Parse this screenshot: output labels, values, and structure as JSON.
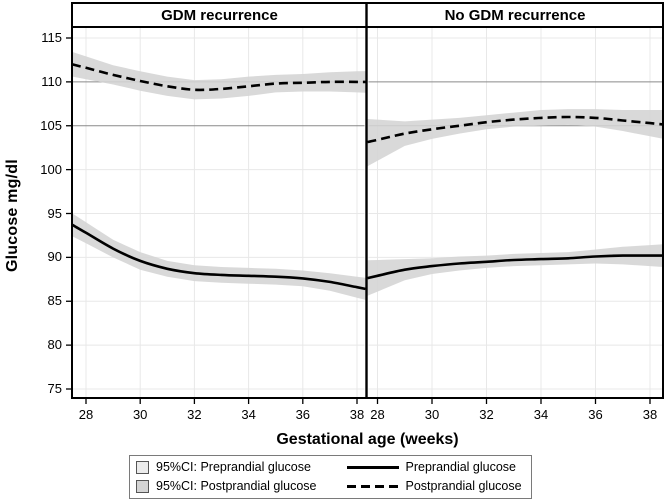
{
  "figure": {
    "ylabel": "Glucose mg/dl",
    "xlabel": "Gestational age (weeks)"
  },
  "panels": [
    {
      "title": "GDM recurrence"
    },
    {
      "title": "No GDM recurrence"
    }
  ],
  "legend": {
    "items": [
      {
        "kind": "area",
        "swatch": "#ebebeb",
        "label": "95%CI: Preprandial glucose"
      },
      {
        "kind": "area",
        "swatch": "#d4d4d4",
        "label": "95%CI: Postprandial glucose"
      },
      {
        "kind": "line",
        "style": "solid",
        "label": "Preprandial glucose"
      },
      {
        "kind": "line",
        "style": "dashed",
        "label": "Postprandial glucose"
      }
    ]
  },
  "colors": {
    "line": "#000000",
    "ci_band": "#d4d4d4",
    "grid_light": "#e8e8e8",
    "grid_dark": "#8a8a8a"
  },
  "chart_data": [
    {
      "type": "line",
      "panel": "GDM recurrence",
      "xlabel": "Gestational age (weeks)",
      "ylabel": "Glucose mg/dl",
      "x": [
        28,
        29,
        30,
        31,
        32,
        33,
        34,
        35,
        36,
        37,
        38
      ],
      "xticks": [
        28,
        30,
        32,
        34,
        36,
        38
      ],
      "yticks": [
        75,
        80,
        85,
        90,
        95,
        100,
        105,
        110,
        115
      ],
      "ylim": [
        75,
        115
      ],
      "emphasized_gridlines": [
        105,
        110
      ],
      "series": [
        {
          "name": "Preprandial glucose",
          "style": "solid",
          "values": [
            92.8,
            91.0,
            89.6,
            88.7,
            88.2,
            88.0,
            87.9,
            87.8,
            87.6,
            87.2,
            86.6
          ],
          "ci_low": [
            91.6,
            90.0,
            88.6,
            87.8,
            87.3,
            87.1,
            87.0,
            86.9,
            86.7,
            86.2,
            85.4
          ],
          "ci_high": [
            94.0,
            92.0,
            90.6,
            89.6,
            89.1,
            88.9,
            88.8,
            88.7,
            88.5,
            88.2,
            87.8
          ]
        },
        {
          "name": "Postprandial glucose",
          "style": "dashed",
          "values": [
            111.6,
            110.8,
            110.1,
            109.5,
            109.1,
            109.2,
            109.5,
            109.8,
            109.9,
            110.0,
            110.0
          ],
          "ci_low": [
            110.3,
            109.7,
            109.0,
            108.4,
            108.0,
            108.1,
            108.4,
            108.8,
            108.9,
            108.9,
            108.8
          ],
          "ci_high": [
            112.9,
            111.9,
            111.2,
            110.6,
            110.2,
            110.3,
            110.6,
            110.8,
            110.9,
            111.1,
            111.2
          ]
        }
      ]
    },
    {
      "type": "line",
      "panel": "No GDM recurrence",
      "xlabel": "Gestational age (weeks)",
      "ylabel": "Glucose mg/dl",
      "x": [
        28,
        29,
        30,
        31,
        32,
        33,
        34,
        35,
        36,
        37,
        38
      ],
      "xticks": [
        28,
        30,
        32,
        34,
        36,
        38
      ],
      "yticks": [
        75,
        80,
        85,
        90,
        95,
        100,
        105,
        110,
        115
      ],
      "ylim": [
        75,
        115
      ],
      "emphasized_gridlines": [
        105,
        110
      ],
      "series": [
        {
          "name": "Preprandial glucose",
          "style": "solid",
          "values": [
            87.9,
            88.6,
            89.0,
            89.3,
            89.5,
            89.7,
            89.8,
            89.9,
            90.1,
            90.2,
            90.2
          ],
          "ci_low": [
            86.1,
            87.4,
            88.1,
            88.5,
            88.8,
            89.0,
            89.1,
            89.2,
            89.3,
            89.2,
            89.0
          ],
          "ci_high": [
            89.7,
            89.8,
            89.9,
            90.1,
            90.2,
            90.4,
            90.5,
            90.6,
            90.9,
            91.2,
            91.4
          ]
        },
        {
          "name": "Postprandial glucose",
          "style": "dashed",
          "values": [
            103.4,
            104.1,
            104.6,
            105.0,
            105.4,
            105.7,
            105.9,
            106.0,
            105.9,
            105.6,
            105.3
          ],
          "ci_low": [
            101.0,
            102.7,
            103.5,
            104.1,
            104.6,
            104.9,
            105.0,
            105.1,
            104.9,
            104.4,
            103.8
          ],
          "ci_high": [
            105.7,
            105.5,
            105.7,
            105.9,
            106.2,
            106.5,
            106.8,
            106.9,
            106.9,
            106.8,
            106.8
          ]
        }
      ]
    }
  ]
}
